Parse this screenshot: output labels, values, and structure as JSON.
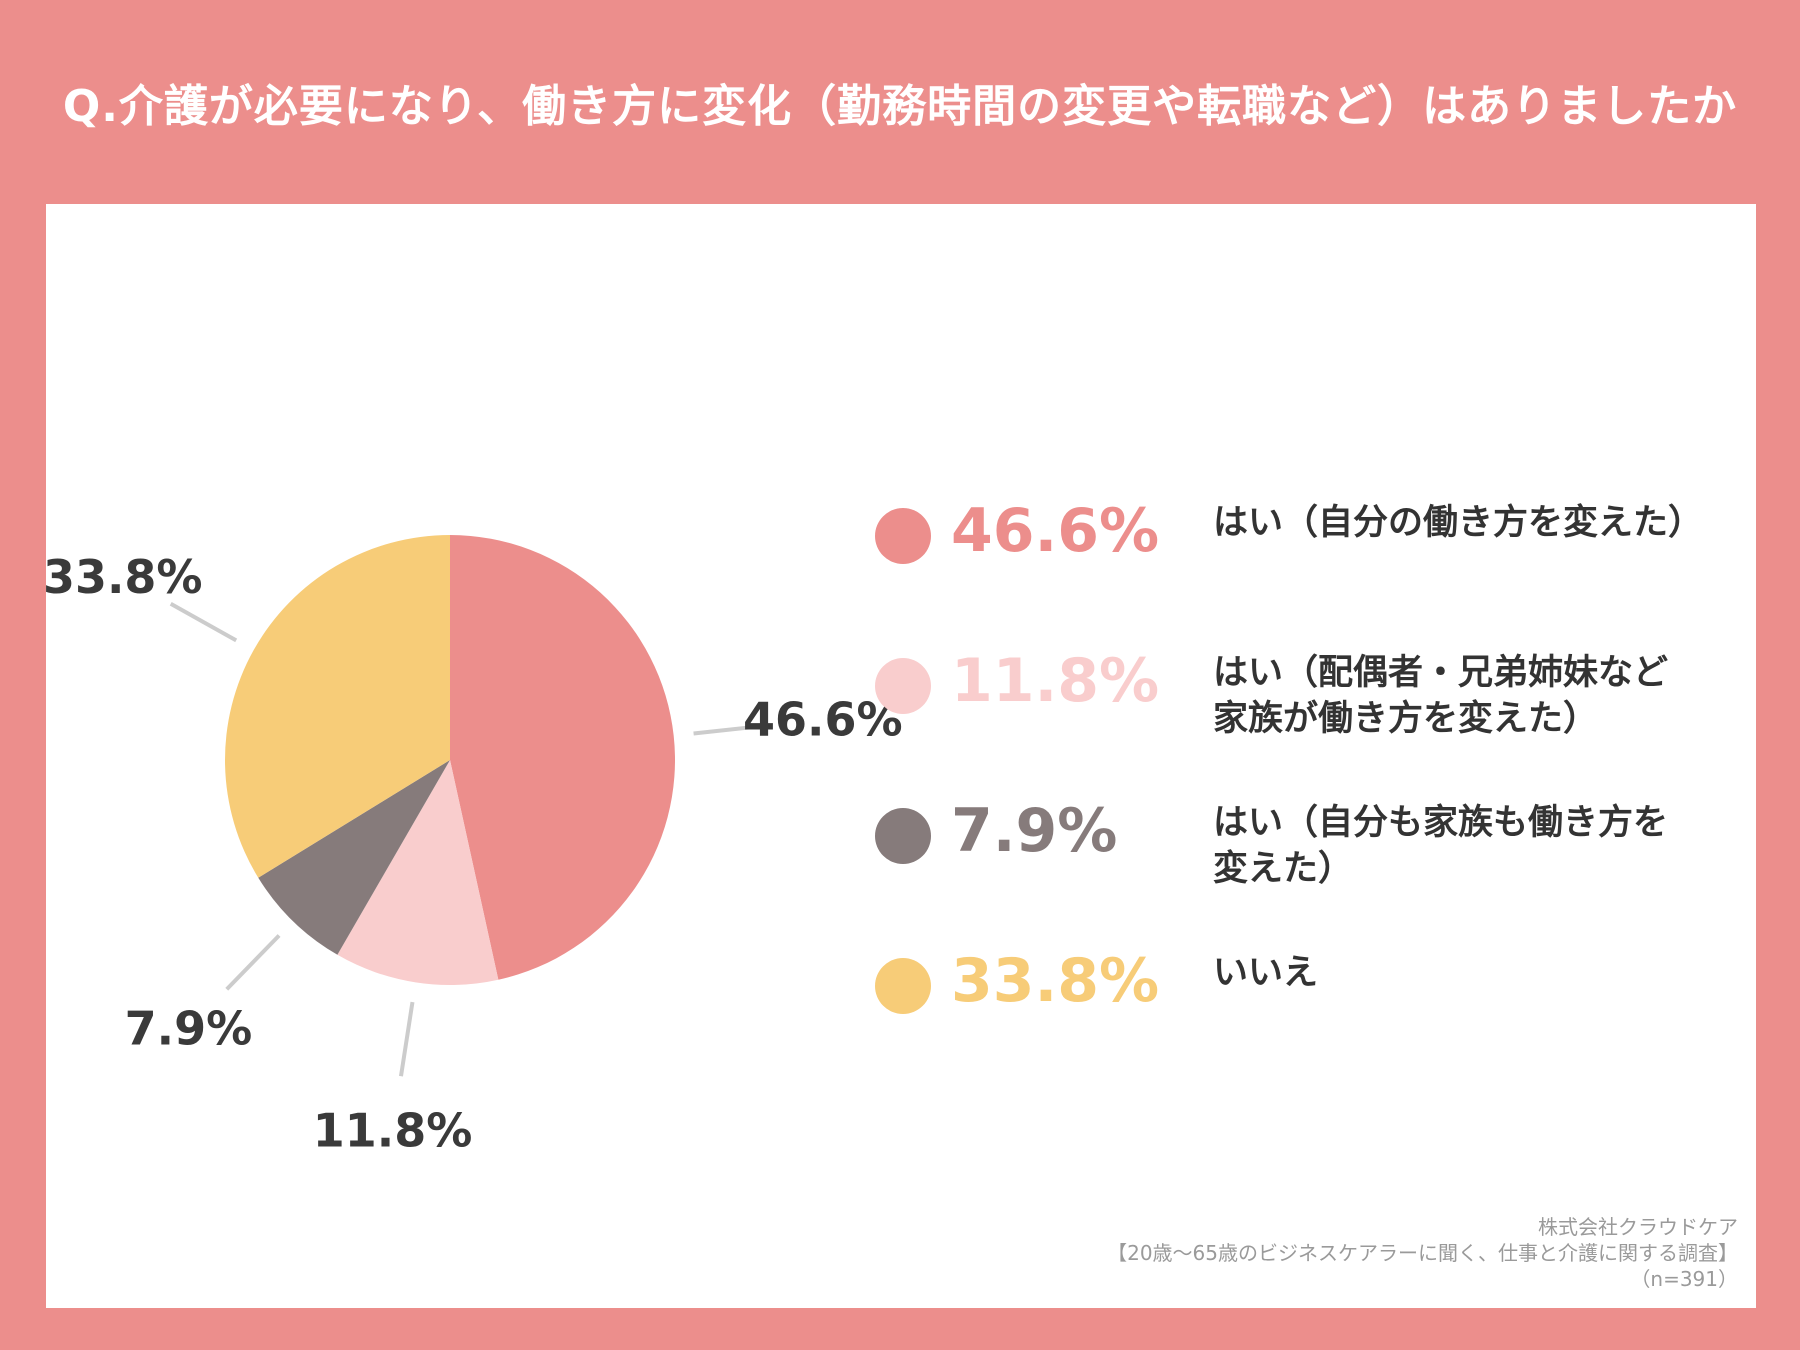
{
  "title": "Q.介護が必要になり、働き方に変化（勤務時間の変更や転職など）はありましたか",
  "footer": {
    "company": "株式会社クラウドケア",
    "survey": "【20歳～65歳のビジネスケアラーに聞く、仕事と介護に関する調査】",
    "sample": "（n=391）"
  },
  "chart_data": {
    "type": "pie",
    "series": [
      {
        "name": "はい（自分の働き方を変えた）",
        "value": 46.6,
        "label": "46.6%",
        "color": "#ec8e8c"
      },
      {
        "name": "はい（配偶者・兄弟姉妹など家族が働き方を変えた）",
        "value": 11.8,
        "label": "11.8%",
        "color": "#f9cdcd"
      },
      {
        "name": "はい（自分も家族も働き方を変えた）",
        "value": 7.9,
        "label": "7.9%",
        "color": "#867b7b"
      },
      {
        "name": "いいえ",
        "value": 33.8,
        "label": "33.8%",
        "color": "#f7cc78"
      }
    ],
    "legend": "right"
  },
  "legend_items": [
    {
      "pct": "46.6%",
      "label": "はい（自分の働き方を変えた）",
      "color": "#ec8e8c"
    },
    {
      "pct": "11.8%",
      "label": "はい（配偶者・兄弟姉妹など家族が働き方を変えた）",
      "color": "#f9cdcd"
    },
    {
      "pct": "7.9%",
      "label": "はい（自分も家族も働き方を変えた）",
      "color": "#867b7b"
    },
    {
      "pct": "33.8%",
      "label": "いいえ",
      "color": "#f7cc78"
    }
  ]
}
